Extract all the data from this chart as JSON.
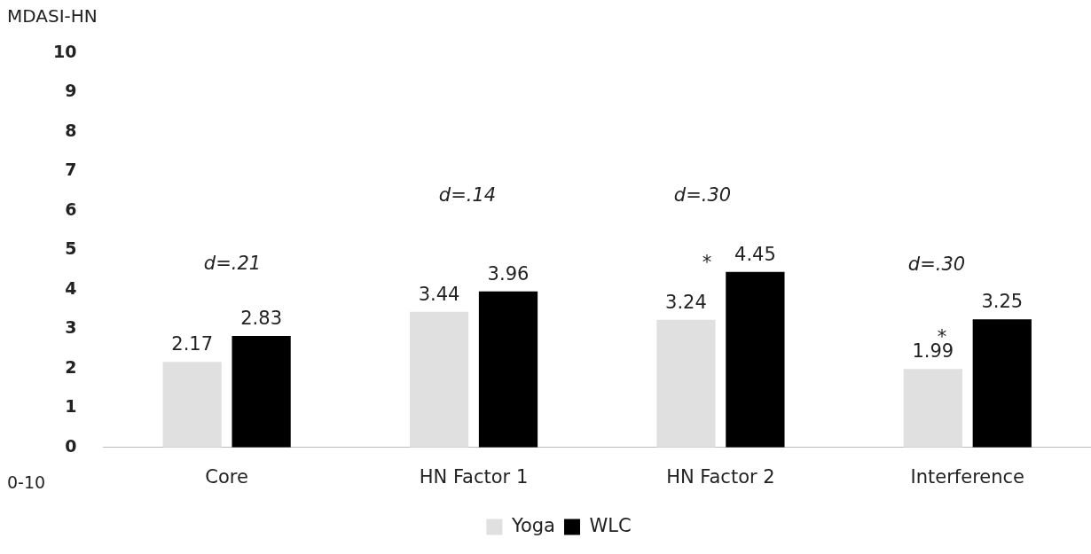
{
  "chart_data": {
    "type": "bar",
    "ylabel": "MDASI-HN",
    "categories": [
      "Core",
      "HN Factor 1",
      "HN Factor 2",
      "Interference"
    ],
    "series": [
      {
        "name": "Yoga",
        "color": "#e0e0e0",
        "values": [
          2.17,
          3.44,
          3.24,
          1.99
        ]
      },
      {
        "name": "WLC",
        "color": "#000000",
        "values": [
          2.83,
          3.96,
          4.45,
          3.25
        ]
      }
    ],
    "ylim": [
      0,
      10
    ],
    "yticks": [
      0,
      1,
      2,
      3,
      4,
      5,
      6,
      7,
      8,
      9,
      10
    ],
    "grid": false,
    "legend": "bottom",
    "data_labels": true,
    "annotations": [
      "d=.21",
      "d=.14",
      "d=.30",
      "d=.30",
      "*",
      "*",
      "0-10"
    ]
  }
}
